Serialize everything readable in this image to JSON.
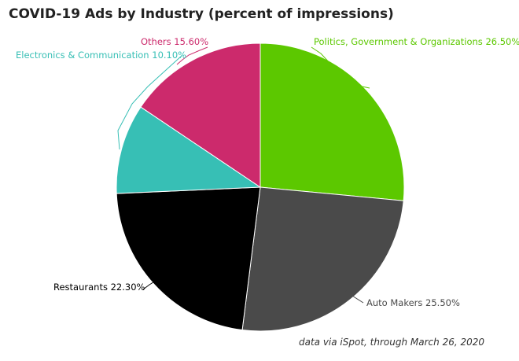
{
  "chart_data": {
    "type": "pie",
    "title": "COVID-19 Ads by Industry (percent of impressions)",
    "source": "data via iSpot, through March 26, 2020",
    "slices": [
      {
        "name": "Politics, Government & Organizations",
        "value": 26.5,
        "label": "Politics, Government & Organizations 26.50%",
        "color": "#5cc800"
      },
      {
        "name": "Auto Makers",
        "value": 25.5,
        "label": "Auto Makers 25.50%",
        "color": "#4a4a4a"
      },
      {
        "name": "Restaurants",
        "value": 22.3,
        "label": "Restaurants 22.30%",
        "color": "#000000"
      },
      {
        "name": "Electronics & Communication",
        "value": 10.1,
        "label": "Electronics & Communication 10.10%",
        "color": "#37bfb5"
      },
      {
        "name": "Others",
        "value": 15.6,
        "label": "Others 15.60%",
        "color": "#cc2a6c"
      }
    ]
  }
}
